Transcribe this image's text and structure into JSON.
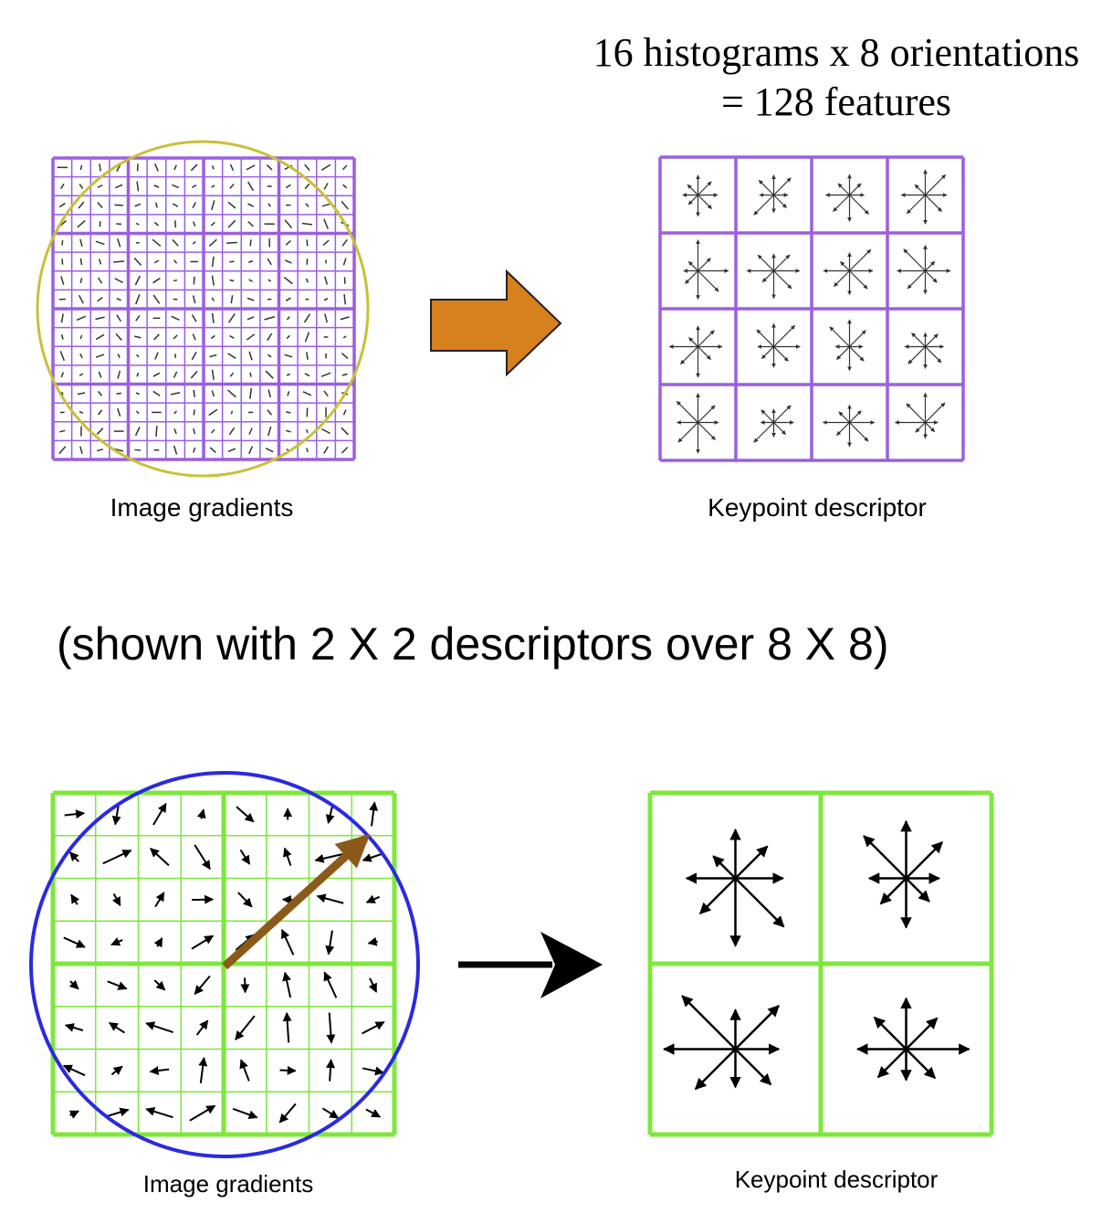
{
  "top": {
    "title_lines": [
      "16 histograms x 8 orientations",
      "= 128 features"
    ],
    "left_label": "Image gradients",
    "right_label": "Keypoint descriptor"
  },
  "note": "(shown with 2 X 2 descriptors over 8 X 8)",
  "bottom": {
    "left_label": "Image gradients",
    "right_label": "Keypoint descriptor"
  }
}
